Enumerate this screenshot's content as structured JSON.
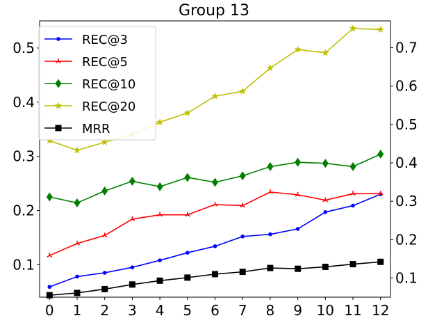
{
  "chart_data": {
    "type": "line",
    "title": "Group 13",
    "xlabel": "",
    "ylabel": "",
    "x": [
      0,
      1,
      2,
      3,
      4,
      5,
      6,
      7,
      8,
      9,
      10,
      11,
      12
    ],
    "xticks": [
      "0",
      "1",
      "2",
      "3",
      "4",
      "5",
      "6",
      "7",
      "8",
      "9",
      "10",
      "11",
      "12"
    ],
    "ylim_left": [
      0.04,
      0.55
    ],
    "yticks_left": [
      "0.1",
      "0.2",
      "0.3",
      "0.4",
      "0.5"
    ],
    "ylim_right": [
      0.05,
      0.77
    ],
    "yticks_right": [
      "0.1",
      "0.2",
      "0.3",
      "0.4",
      "0.5",
      "0.6",
      "0.7"
    ],
    "grid": false,
    "legend": {
      "placement": "top-left"
    },
    "series": [
      {
        "name": "REC@3",
        "axis": "left",
        "color": "#0000ff",
        "marker": "dot",
        "values": [
          0.059,
          0.078,
          0.085,
          0.095,
          0.108,
          0.122,
          0.134,
          0.152,
          0.156,
          0.166,
          0.197,
          0.209,
          0.23
        ]
      },
      {
        "name": "REC@5",
        "axis": "left",
        "color": "#ff0000",
        "marker": "tri",
        "values": [
          0.117,
          0.139,
          0.154,
          0.184,
          0.192,
          0.192,
          0.211,
          0.209,
          0.234,
          0.229,
          0.219,
          0.231,
          0.231
        ]
      },
      {
        "name": "REC@10",
        "axis": "left",
        "color": "#008000",
        "marker": "diamond",
        "values": [
          0.225,
          0.214,
          0.236,
          0.254,
          0.244,
          0.261,
          0.252,
          0.264,
          0.281,
          0.289,
          0.287,
          0.281,
          0.304
        ]
      },
      {
        "name": "REC@20",
        "axis": "left",
        "color": "#bfbf00",
        "marker": "star",
        "values": [
          0.329,
          0.311,
          0.326,
          0.34,
          0.363,
          0.38,
          0.411,
          0.42,
          0.463,
          0.497,
          0.491,
          0.536,
          0.534
        ]
      },
      {
        "name": "MRR",
        "axis": "right",
        "color": "#000000",
        "marker": "square",
        "values": [
          0.055,
          0.061,
          0.071,
          0.083,
          0.093,
          0.101,
          0.11,
          0.116,
          0.126,
          0.124,
          0.129,
          0.136,
          0.142
        ]
      }
    ]
  }
}
